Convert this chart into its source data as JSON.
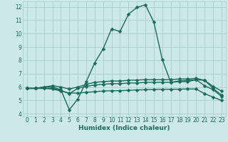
{
  "xlabel": "Humidex (Indice chaleur)",
  "background_color": "#cce8e8",
  "grid_color": "#aacccc",
  "line_color": "#1a6b5a",
  "xlim": [
    -0.5,
    23.5
  ],
  "ylim": [
    3.8,
    12.4
  ],
  "xticks": [
    0,
    1,
    2,
    3,
    4,
    5,
    6,
    7,
    8,
    9,
    10,
    11,
    12,
    13,
    14,
    15,
    16,
    17,
    18,
    19,
    20,
    21,
    22,
    23
  ],
  "yticks": [
    4,
    5,
    6,
    7,
    8,
    9,
    10,
    11,
    12
  ],
  "series1_y": [
    5.9,
    5.9,
    6.0,
    6.0,
    5.8,
    4.3,
    5.1,
    6.4,
    7.8,
    8.85,
    10.35,
    10.15,
    11.45,
    11.95,
    12.15,
    10.85,
    8.05,
    6.35,
    6.45,
    6.5,
    6.55,
    6.1,
    5.8,
    5.3
  ],
  "series2_y": [
    5.9,
    5.9,
    5.9,
    5.9,
    5.75,
    5.5,
    5.9,
    6.05,
    6.15,
    6.2,
    6.25,
    6.25,
    6.3,
    6.3,
    6.35,
    6.35,
    6.35,
    6.35,
    6.4,
    6.4,
    6.55,
    6.5,
    6.05,
    5.7
  ],
  "series3_y": [
    5.9,
    5.9,
    5.9,
    5.85,
    5.7,
    5.55,
    5.55,
    5.6,
    5.65,
    5.7,
    5.72,
    5.73,
    5.75,
    5.78,
    5.8,
    5.82,
    5.83,
    5.83,
    5.84,
    5.85,
    5.85,
    5.5,
    5.25,
    5.0
  ],
  "series4_y": [
    5.9,
    5.9,
    6.0,
    6.1,
    6.0,
    5.85,
    6.0,
    6.2,
    6.35,
    6.4,
    6.45,
    6.45,
    6.5,
    6.52,
    6.55,
    6.55,
    6.55,
    6.55,
    6.6,
    6.6,
    6.65,
    6.5,
    5.9,
    5.4
  ],
  "markersize": 2.5,
  "linewidth": 1.0,
  "tick_fontsize": 5.5,
  "label_fontsize": 6.5
}
